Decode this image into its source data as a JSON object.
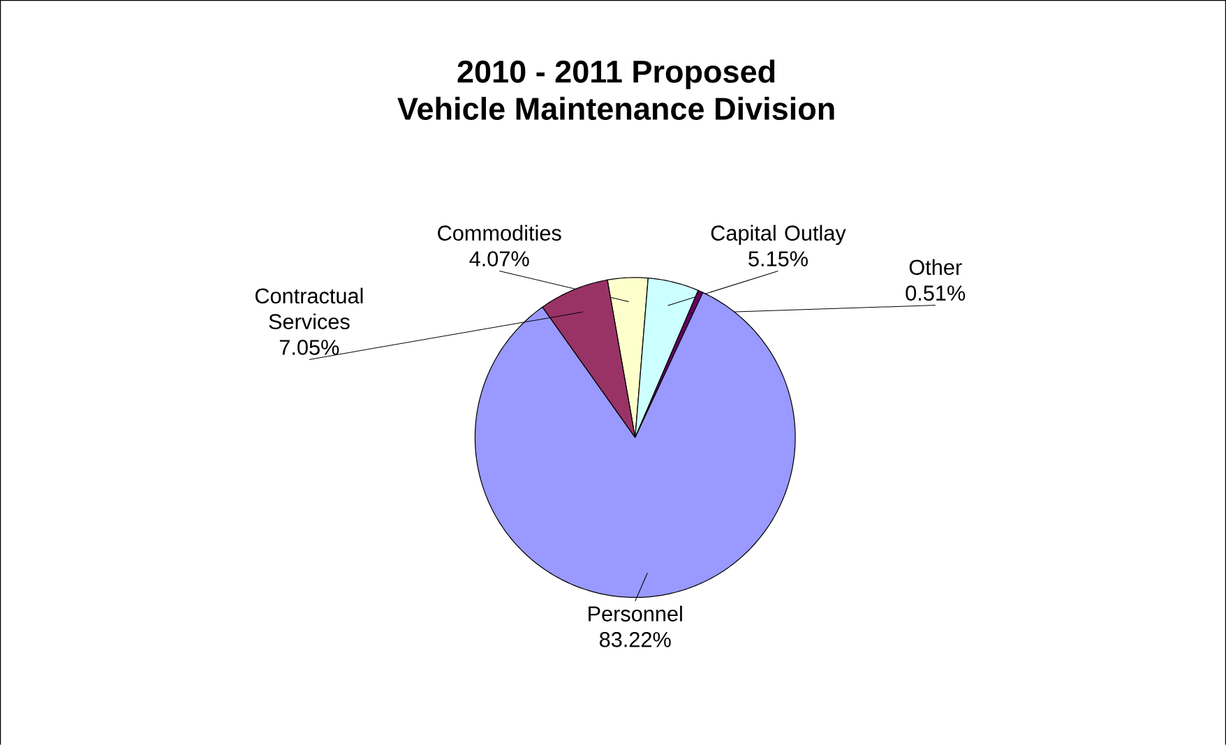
{
  "chart_data": {
    "type": "pie",
    "title": "2010 - 2011 Proposed",
    "subtitle": "Vehicle Maintenance Division",
    "categories": [
      "Commodities",
      "Capital Outlay",
      "Other",
      "Personnel",
      "Contractual Services"
    ],
    "values": [
      4.07,
      5.15,
      0.51,
      83.22,
      7.05
    ],
    "value_labels": [
      "4.07%",
      "5.15%",
      "0.51%",
      "83.22%",
      "7.05%"
    ],
    "colors": [
      "#ffffcc",
      "#ccffff",
      "#660066",
      "#9999ff",
      "#993366"
    ],
    "legend": false
  }
}
